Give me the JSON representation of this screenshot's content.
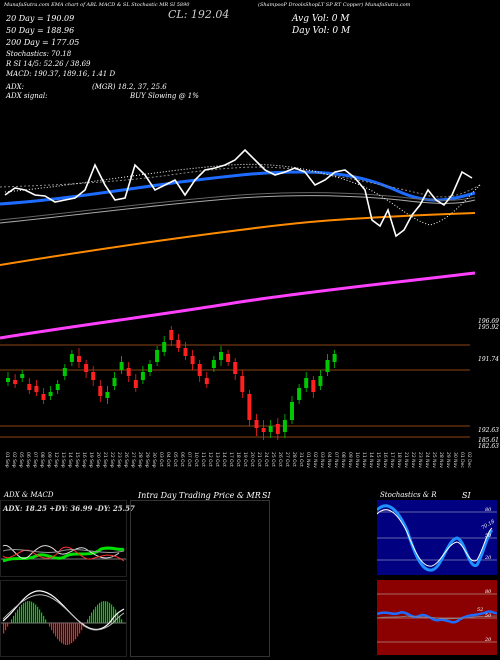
{
  "header": {
    "left_line": "MunafaSutra.com EMA chart of ABL MACD & SL Stochastic MR SI 5890",
    "center_price": "CL: 192.04",
    "title_right": "(ShampooP DroolsShopLT SP RT Copper) MunafaSutra.com",
    "avg_vol": "Avg Vol: 0  M",
    "day_vol": "Day Vol: 0  M"
  },
  "indicators": {
    "ema20": "20 Day = 190.09",
    "ema50": "50 Day = 188.96",
    "ema200": "200 Day = 177.05",
    "stoch": "Stochastics: 70.18",
    "rsi": "R  SI 14/5: 52.26 / 38.69",
    "macd": "MACD: 190.37, 189.16, 1.41 D",
    "adx": "ADX:",
    "adx_val": "(MGR) 18.2,  37,  25.6",
    "adx_signal": "ADX  signal:",
    "signal": "BUY Slowing @ 1%"
  },
  "price_levels": {
    "top_a": "196.69",
    "top_b": "195.92",
    "mid": "191.74",
    "low_a": "192.63",
    "low_b": "185.61",
    "low_c": "182.63"
  },
  "dates": [
    "01 Sep",
    "02 Sep",
    "05 Sep",
    "06 Sep",
    "07 Sep",
    "08 Sep",
    "09 Sep",
    "12 Sep",
    "13 Sep",
    "14 Sep",
    "15 Sep",
    "16 Sep",
    "19 Sep",
    "20 Sep",
    "21 Sep",
    "22 Sep",
    "23 Sep",
    "26 Sep",
    "27 Sep",
    "28 Sep",
    "29 Sep",
    "30 Sep",
    "03 Oct",
    "04 Oct",
    "05 Oct",
    "06 Oct",
    "07 Oct",
    "10 Oct",
    "11 Oct",
    "12 Oct",
    "13 Oct",
    "14 Oct",
    "17 Oct",
    "18 Oct",
    "19 Oct",
    "20 Oct",
    "21 Oct",
    "24 Oct",
    "25 Oct",
    "26 Oct",
    "27 Oct",
    "28 Oct",
    "31 Oct",
    "01 Nov",
    "02 Nov",
    "03 Nov",
    "04 Nov",
    "07 Nov",
    "08 Nov",
    "09 Nov",
    "10 Nov",
    "11 Nov",
    "14 Nov",
    "15 Nov",
    "16 Nov",
    "17 Nov",
    "18 Nov",
    "21 Nov",
    "22 Nov",
    "23 Nov",
    "24 Nov",
    "25 Nov",
    "28 Nov",
    "29 Nov",
    "30 Nov",
    "01 Dec",
    "02 Dec",
    "05 Dec"
  ],
  "panels": {
    "adx_title": "ADX  & MACD",
    "adx_readout": "ADX: 18.25  +DY: 36.99  -DY: 25.57",
    "intraday_title": "Intra  Day Trading Price  & MR",
    "si_left": "SI",
    "stoch_title": "Stochastics & R",
    "si_right": "SI",
    "stoch_ticks": [
      "80",
      "50",
      "20"
    ],
    "rsi_ticks": [
      "80",
      "50",
      "20"
    ],
    "stoch_badge": "70.18",
    "rsi_badge": "52"
  },
  "colors": {
    "ema20": "#ffffff",
    "ema50": "#1e6bff",
    "ema200": "#ff8c00",
    "upper": "#ff40ff",
    "candle_up": "#00c800",
    "candle_down": "#ff2020",
    "stoch_bg": "#000080",
    "rsi_bg": "#8b0000"
  }
}
